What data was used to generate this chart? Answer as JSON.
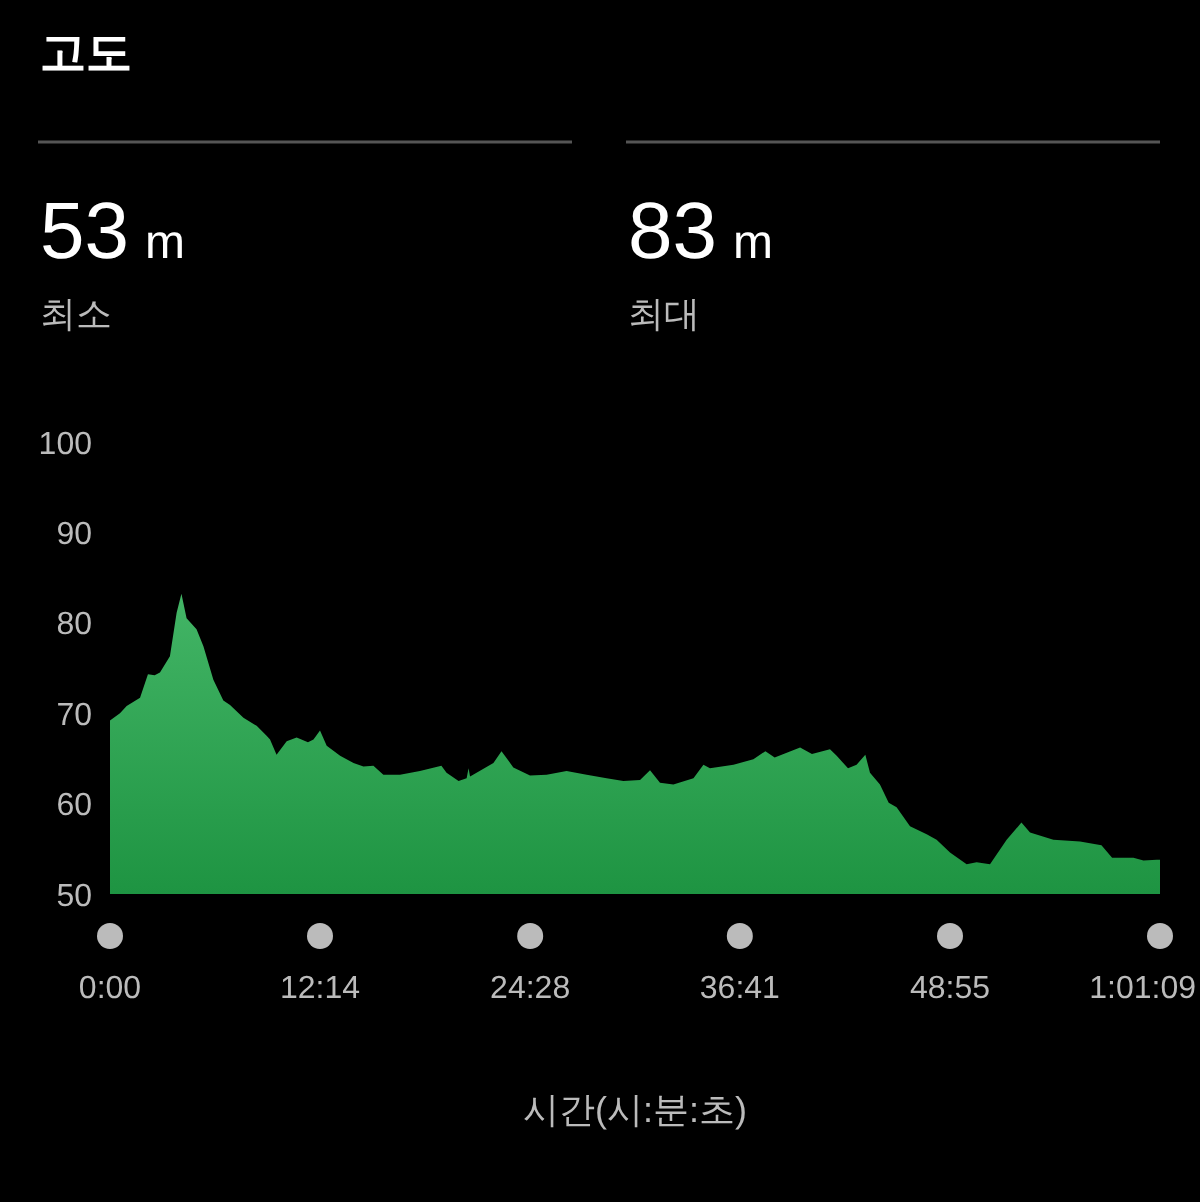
{
  "chart_data": {
    "type": "area",
    "title": "고도",
    "xlabel": "시간(시:분:초)",
    "annotations": [
      "53 m",
      "최소",
      "83 m",
      "최대"
    ],
    "x": [
      0,
      0.58,
      0.97,
      1.75,
      2.21,
      2.6,
      2.91,
      3.49,
      3.88,
      4.16,
      4.46,
      5.04,
      5.44,
      6.02,
      6.6,
      6.99,
      7.77,
      8.54,
      9.12,
      9.32,
      9.7,
      10.29,
      10.87,
      11.53,
      11.85,
      12.23,
      12.62,
      13.4,
      14.18,
      14.76,
      15.34,
      15.92,
      16.89,
      18.05,
      19.3,
      19.6,
      20.3,
      20.77,
      20.88,
      20.97,
      22.33,
      22.8,
      23.49,
      24.46,
      25.43,
      26.59,
      27.76,
      28.92,
      29.9,
      30.87,
      31.45,
      32.03,
      32.81,
      33.98,
      34.56,
      34.94,
      36.31,
      37.47,
      38.17,
      38.71,
      40.19,
      40.88,
      41.93,
      42.32,
      42.98,
      43.48,
      43.99,
      44.26,
      44.84,
      45.35,
      45.81,
      46.59,
      47.56,
      48.14,
      48.92,
      49.89,
      50.47,
      51.25,
      52.22,
      53.08,
      53.58,
      54.94,
      56.49,
      57.74,
      58.36,
      59.6,
      60.19,
      60.96,
      61.15
    ],
    "series": [
      {
        "color": "#22a84b",
        "values": [
          69.2,
          70.0,
          70.8,
          71.7,
          74.3,
          74.2,
          74.5,
          76.3,
          81.1,
          83.2,
          80.5,
          79.3,
          77.4,
          73.7,
          71.4,
          70.9,
          69.5,
          68.6,
          67.5,
          67.1,
          65.4,
          66.9,
          67.3,
          66.8,
          67.1,
          68.1,
          66.4,
          65.3,
          64.5,
          64.1,
          64.2,
          63.2,
          63.2,
          63.6,
          64.2,
          63.4,
          62.5,
          62.8,
          63.9,
          63.0,
          64.5,
          65.8,
          64.0,
          63.1,
          63.2,
          63.6,
          63.2,
          62.8,
          62.5,
          62.6,
          63.7,
          62.3,
          62.1,
          62.8,
          64.3,
          63.9,
          64.3,
          64.9,
          65.8,
          65.1,
          66.2,
          65.5,
          66.0,
          65.3,
          63.9,
          64.3,
          65.4,
          63.4,
          62.1,
          60.1,
          59.6,
          57.5,
          56.6,
          56.0,
          54.6,
          53.3,
          53.5,
          53.3,
          56.0,
          57.9,
          56.8,
          56.0,
          55.8,
          55.4,
          54.0,
          54.0,
          53.7,
          53.8,
          53.8
        ]
      }
    ],
    "xlim": [
      0,
      61.15
    ],
    "xticks": [
      {
        "value": 0,
        "label": "0:00"
      },
      {
        "value": 12.23,
        "label": "12:14"
      },
      {
        "value": 24.47,
        "label": "24:28"
      },
      {
        "value": 36.68,
        "label": "36:41"
      },
      {
        "value": 48.92,
        "label": "48:55"
      },
      {
        "value": 61.15,
        "label": "1:01:09"
      }
    ],
    "ylim": [
      50,
      100
    ],
    "yticks": [
      50,
      60,
      70,
      80,
      90,
      100
    ]
  }
}
